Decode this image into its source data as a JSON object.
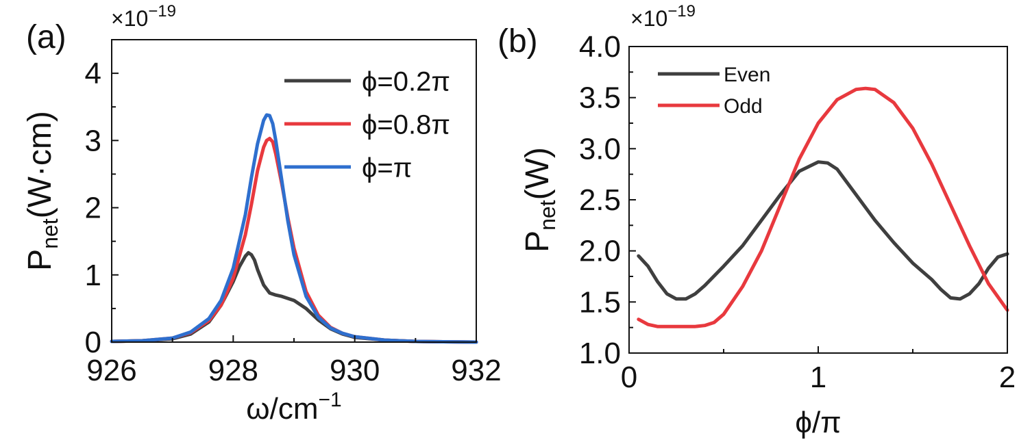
{
  "chart_data": [
    {
      "panel_label": "(a)",
      "type": "line",
      "multiplier": {
        "base": "×10",
        "exponent": "−19"
      },
      "xlabel": {
        "main": "ω/cm",
        "sup": "−1"
      },
      "ylabel": {
        "main": "P",
        "sub": "net",
        "unit": "(W·cm)"
      },
      "xlim": [
        926,
        932
      ],
      "ylim": [
        0,
        4.5
      ],
      "xticks": [
        926,
        928,
        930,
        932
      ],
      "xtick_labels": [
        "926",
        "928",
        "930",
        "932"
      ],
      "yticks": [
        0,
        1,
        2,
        3,
        4
      ],
      "ytick_labels": [
        "0",
        "1",
        "2",
        "3",
        "4"
      ],
      "legend_position": "top-right",
      "series": [
        {
          "name": "ϕ=0.2π",
          "color": "#3f3f3f",
          "x": [
            926,
            926.5,
            927,
            927.3,
            927.6,
            927.8,
            928.0,
            928.1,
            928.2,
            928.25,
            928.3,
            928.35,
            928.4,
            928.5,
            928.6,
            928.7,
            928.8,
            929.0,
            929.2,
            929.4,
            929.6,
            929.8,
            930,
            930.5,
            931,
            932
          ],
          "y": [
            0.01,
            0.02,
            0.05,
            0.12,
            0.3,
            0.55,
            0.9,
            1.12,
            1.28,
            1.33,
            1.3,
            1.22,
            1.08,
            0.85,
            0.73,
            0.7,
            0.68,
            0.62,
            0.5,
            0.33,
            0.2,
            0.12,
            0.07,
            0.03,
            0.01,
            0.0
          ]
        },
        {
          "name": "ϕ=0.8π",
          "color": "#e8393e",
          "x": [
            926,
            926.5,
            927,
            927.3,
            927.6,
            927.8,
            928.0,
            928.2,
            928.3,
            928.4,
            928.5,
            928.55,
            928.6,
            928.65,
            928.7,
            928.8,
            928.9,
            929.0,
            929.2,
            929.4,
            929.6,
            929.8,
            930,
            930.5,
            931,
            932
          ],
          "y": [
            0.01,
            0.02,
            0.06,
            0.14,
            0.32,
            0.55,
            0.95,
            1.6,
            2.05,
            2.55,
            2.9,
            3.0,
            3.03,
            2.98,
            2.8,
            2.35,
            1.85,
            1.4,
            0.75,
            0.4,
            0.22,
            0.13,
            0.08,
            0.03,
            0.01,
            0.0
          ]
        },
        {
          "name": "ϕ=π",
          "color": "#2e6fce",
          "x": [
            926,
            926.5,
            927,
            927.3,
            927.6,
            927.8,
            928.0,
            928.2,
            928.3,
            928.4,
            928.5,
            928.55,
            928.6,
            928.65,
            928.7,
            928.8,
            928.9,
            929.0,
            929.2,
            929.4,
            929.6,
            929.8,
            930,
            930.5,
            931,
            932
          ],
          "y": [
            0.01,
            0.02,
            0.06,
            0.15,
            0.35,
            0.62,
            1.1,
            1.9,
            2.45,
            2.95,
            3.3,
            3.38,
            3.37,
            3.25,
            3.0,
            2.4,
            1.8,
            1.3,
            0.68,
            0.37,
            0.21,
            0.13,
            0.08,
            0.03,
            0.01,
            0.0
          ]
        }
      ]
    },
    {
      "panel_label": "(b)",
      "type": "line",
      "multiplier": {
        "base": "×10",
        "exponent": "−19"
      },
      "xlabel": {
        "main": "ϕ/π",
        "sup": ""
      },
      "ylabel": {
        "main": "P",
        "sub": "net",
        "unit": "(W)"
      },
      "xlim": [
        0,
        2
      ],
      "ylim": [
        1.0,
        4.0
      ],
      "xticks": [
        0,
        1,
        2
      ],
      "xtick_labels": [
        "0",
        "1",
        "2"
      ],
      "yticks": [
        1.0,
        1.5,
        2.0,
        2.5,
        3.0,
        3.5,
        4.0
      ],
      "ytick_labels": [
        "1.0",
        "1.5",
        "2.0",
        "2.5",
        "3.0",
        "3.5",
        "4.0"
      ],
      "legend_position": "top-left",
      "series": [
        {
          "name": "Even",
          "color": "#3f3f3f",
          "x": [
            0.05,
            0.1,
            0.15,
            0.2,
            0.25,
            0.3,
            0.35,
            0.4,
            0.5,
            0.6,
            0.7,
            0.8,
            0.9,
            1.0,
            1.05,
            1.1,
            1.2,
            1.3,
            1.4,
            1.5,
            1.6,
            1.65,
            1.7,
            1.75,
            1.8,
            1.85,
            1.9,
            1.95,
            2.0
          ],
          "y": [
            1.95,
            1.85,
            1.7,
            1.58,
            1.53,
            1.53,
            1.58,
            1.66,
            1.85,
            2.05,
            2.3,
            2.55,
            2.78,
            2.87,
            2.86,
            2.8,
            2.55,
            2.3,
            2.08,
            1.88,
            1.72,
            1.62,
            1.54,
            1.53,
            1.58,
            1.68,
            1.83,
            1.94,
            1.97
          ]
        },
        {
          "name": "Odd",
          "color": "#e8393e",
          "x": [
            0.05,
            0.1,
            0.15,
            0.2,
            0.3,
            0.35,
            0.4,
            0.45,
            0.5,
            0.6,
            0.7,
            0.8,
            0.9,
            1.0,
            1.1,
            1.2,
            1.25,
            1.3,
            1.4,
            1.5,
            1.6,
            1.7,
            1.8,
            1.9,
            2.0
          ],
          "y": [
            1.33,
            1.28,
            1.26,
            1.26,
            1.26,
            1.26,
            1.27,
            1.3,
            1.38,
            1.65,
            2.0,
            2.45,
            2.9,
            3.25,
            3.48,
            3.58,
            3.59,
            3.58,
            3.45,
            3.2,
            2.85,
            2.45,
            2.05,
            1.68,
            1.42
          ]
        }
      ]
    }
  ]
}
